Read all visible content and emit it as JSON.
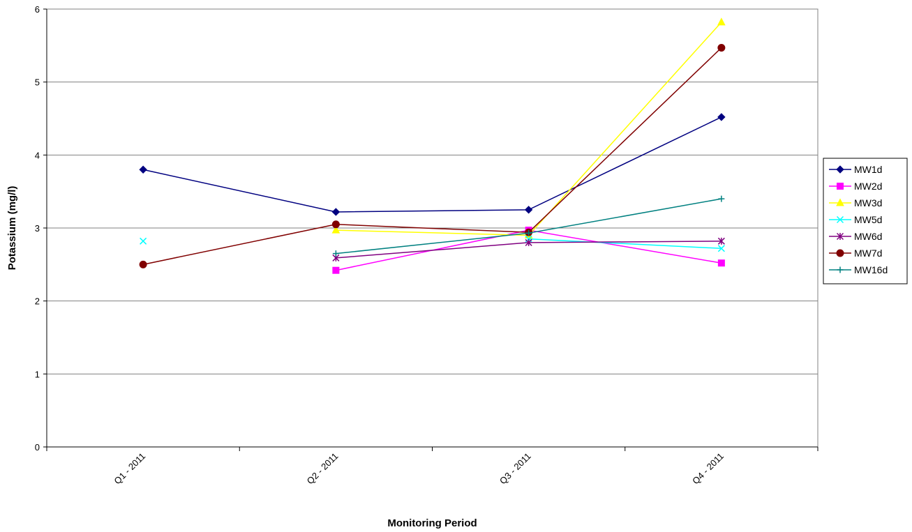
{
  "chart_data": {
    "type": "line",
    "title": "",
    "xlabel": "Monitoring Period",
    "ylabel": "Potassium (mg/l)",
    "categories": [
      "Q1 - 2011",
      "Q2 - 2011",
      "Q3 - 2011",
      "Q4 - 2011"
    ],
    "ylim": [
      0,
      6
    ],
    "yticks": [
      0,
      1,
      2,
      3,
      4,
      5,
      6
    ],
    "grid": true,
    "legend_position": "right",
    "series": [
      {
        "name": "MW1d",
        "color": "#000080",
        "marker": "diamond",
        "values": [
          3.8,
          3.22,
          3.25,
          4.52
        ]
      },
      {
        "name": "MW2d",
        "color": "#FF00FF",
        "marker": "square",
        "values": [
          null,
          2.42,
          2.97,
          2.52
        ]
      },
      {
        "name": "MW3d",
        "color": "#FFFF00",
        "marker": "triangle",
        "values": [
          null,
          2.97,
          2.9,
          5.82
        ]
      },
      {
        "name": "MW5d",
        "color": "#00FFFF",
        "marker": "x",
        "values": [
          2.82,
          null,
          2.85,
          2.72
        ]
      },
      {
        "name": "MW6d",
        "color": "#800080",
        "marker": "star",
        "values": [
          null,
          2.59,
          2.8,
          2.82
        ]
      },
      {
        "name": "MW7d",
        "color": "#800000",
        "marker": "circle",
        "values": [
          2.5,
          3.05,
          2.94,
          5.47
        ]
      },
      {
        "name": "MW16d",
        "color": "#008080",
        "marker": "plus",
        "values": [
          null,
          2.65,
          2.93,
          3.4
        ]
      }
    ]
  }
}
